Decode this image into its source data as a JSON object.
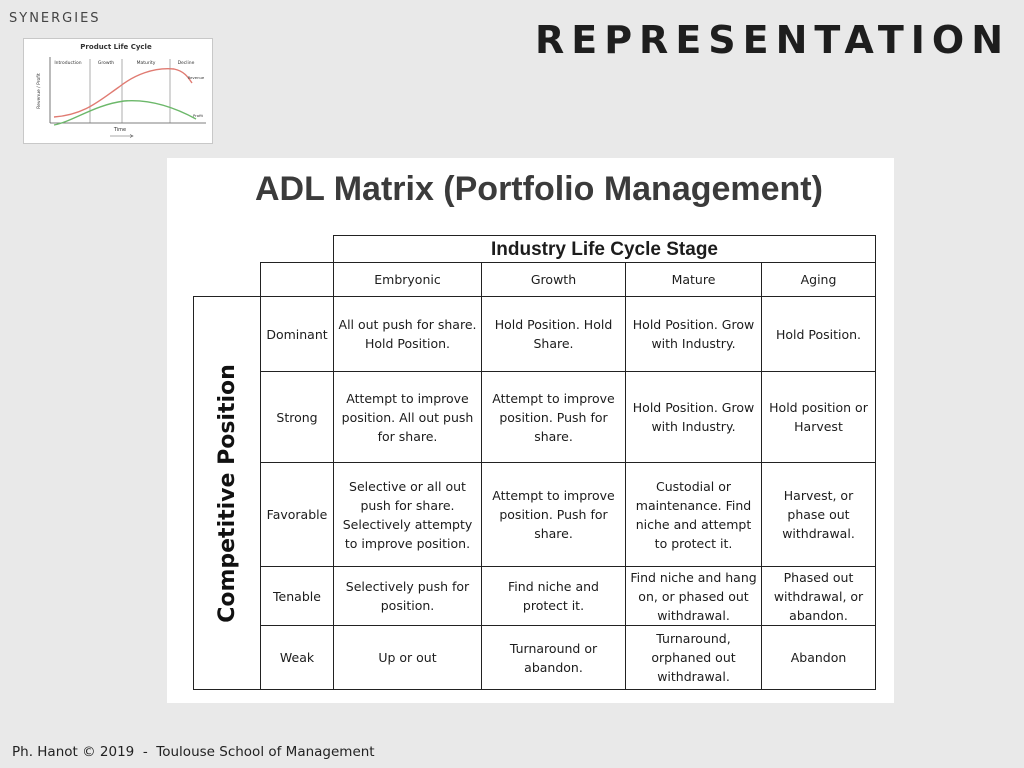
{
  "section_label": "SYNERGIES",
  "slide_title": "REPRESENTATION",
  "thumbnail": {
    "title": "Product Life Cycle",
    "stages": [
      "Introduction",
      "Growth",
      "Maturity",
      "Decline"
    ],
    "ylabel": "Revenue / Profit",
    "xlabel": "Time",
    "series": [
      "Revenue",
      "Profit"
    ],
    "colors": {
      "revenue": "#e07b72",
      "profit": "#6cb86a"
    }
  },
  "matrix": {
    "title": "ADL Matrix (Portfolio Management)",
    "column_group_label": "Industry Life Cycle Stage",
    "row_group_label": "Competitive Position",
    "columns": [
      "Embryonic",
      "Growth",
      "Mature",
      "Aging"
    ],
    "rows": [
      {
        "label": "Dominant",
        "cells": [
          "All out push for share. Hold Position.",
          "Hold Position. Hold Share.",
          "Hold Position. Grow with Industry.",
          "Hold Position."
        ]
      },
      {
        "label": "Strong",
        "cells": [
          "Attempt to improve position. All out push for share.",
          "Attempt to improve position. Push for share.",
          "Hold Position. Grow with Industry.",
          "Hold position or Harvest"
        ]
      },
      {
        "label": "Favorable",
        "cells": [
          "Selective or all out push for share. Selectively attempty to improve position.",
          "Attempt to improve position. Push for share.",
          "Custodial or maintenance. Find niche and attempt to protect it.",
          "Harvest, or phase out withdrawal."
        ]
      },
      {
        "label": "Tenable",
        "cells": [
          "Selectively push for position.",
          "Find niche and protect it.",
          "Find niche and hang on, or phased out withdrawal.",
          "Phased out withdrawal, or abandon."
        ]
      },
      {
        "label": "Weak",
        "cells": [
          "Up or out",
          "Turnaround or abandon.",
          "Turnaround, orphaned out withdrawal.",
          "Abandon"
        ]
      }
    ]
  },
  "footer": "Ph. Hanot © 2019  -  Toulouse School of Management"
}
